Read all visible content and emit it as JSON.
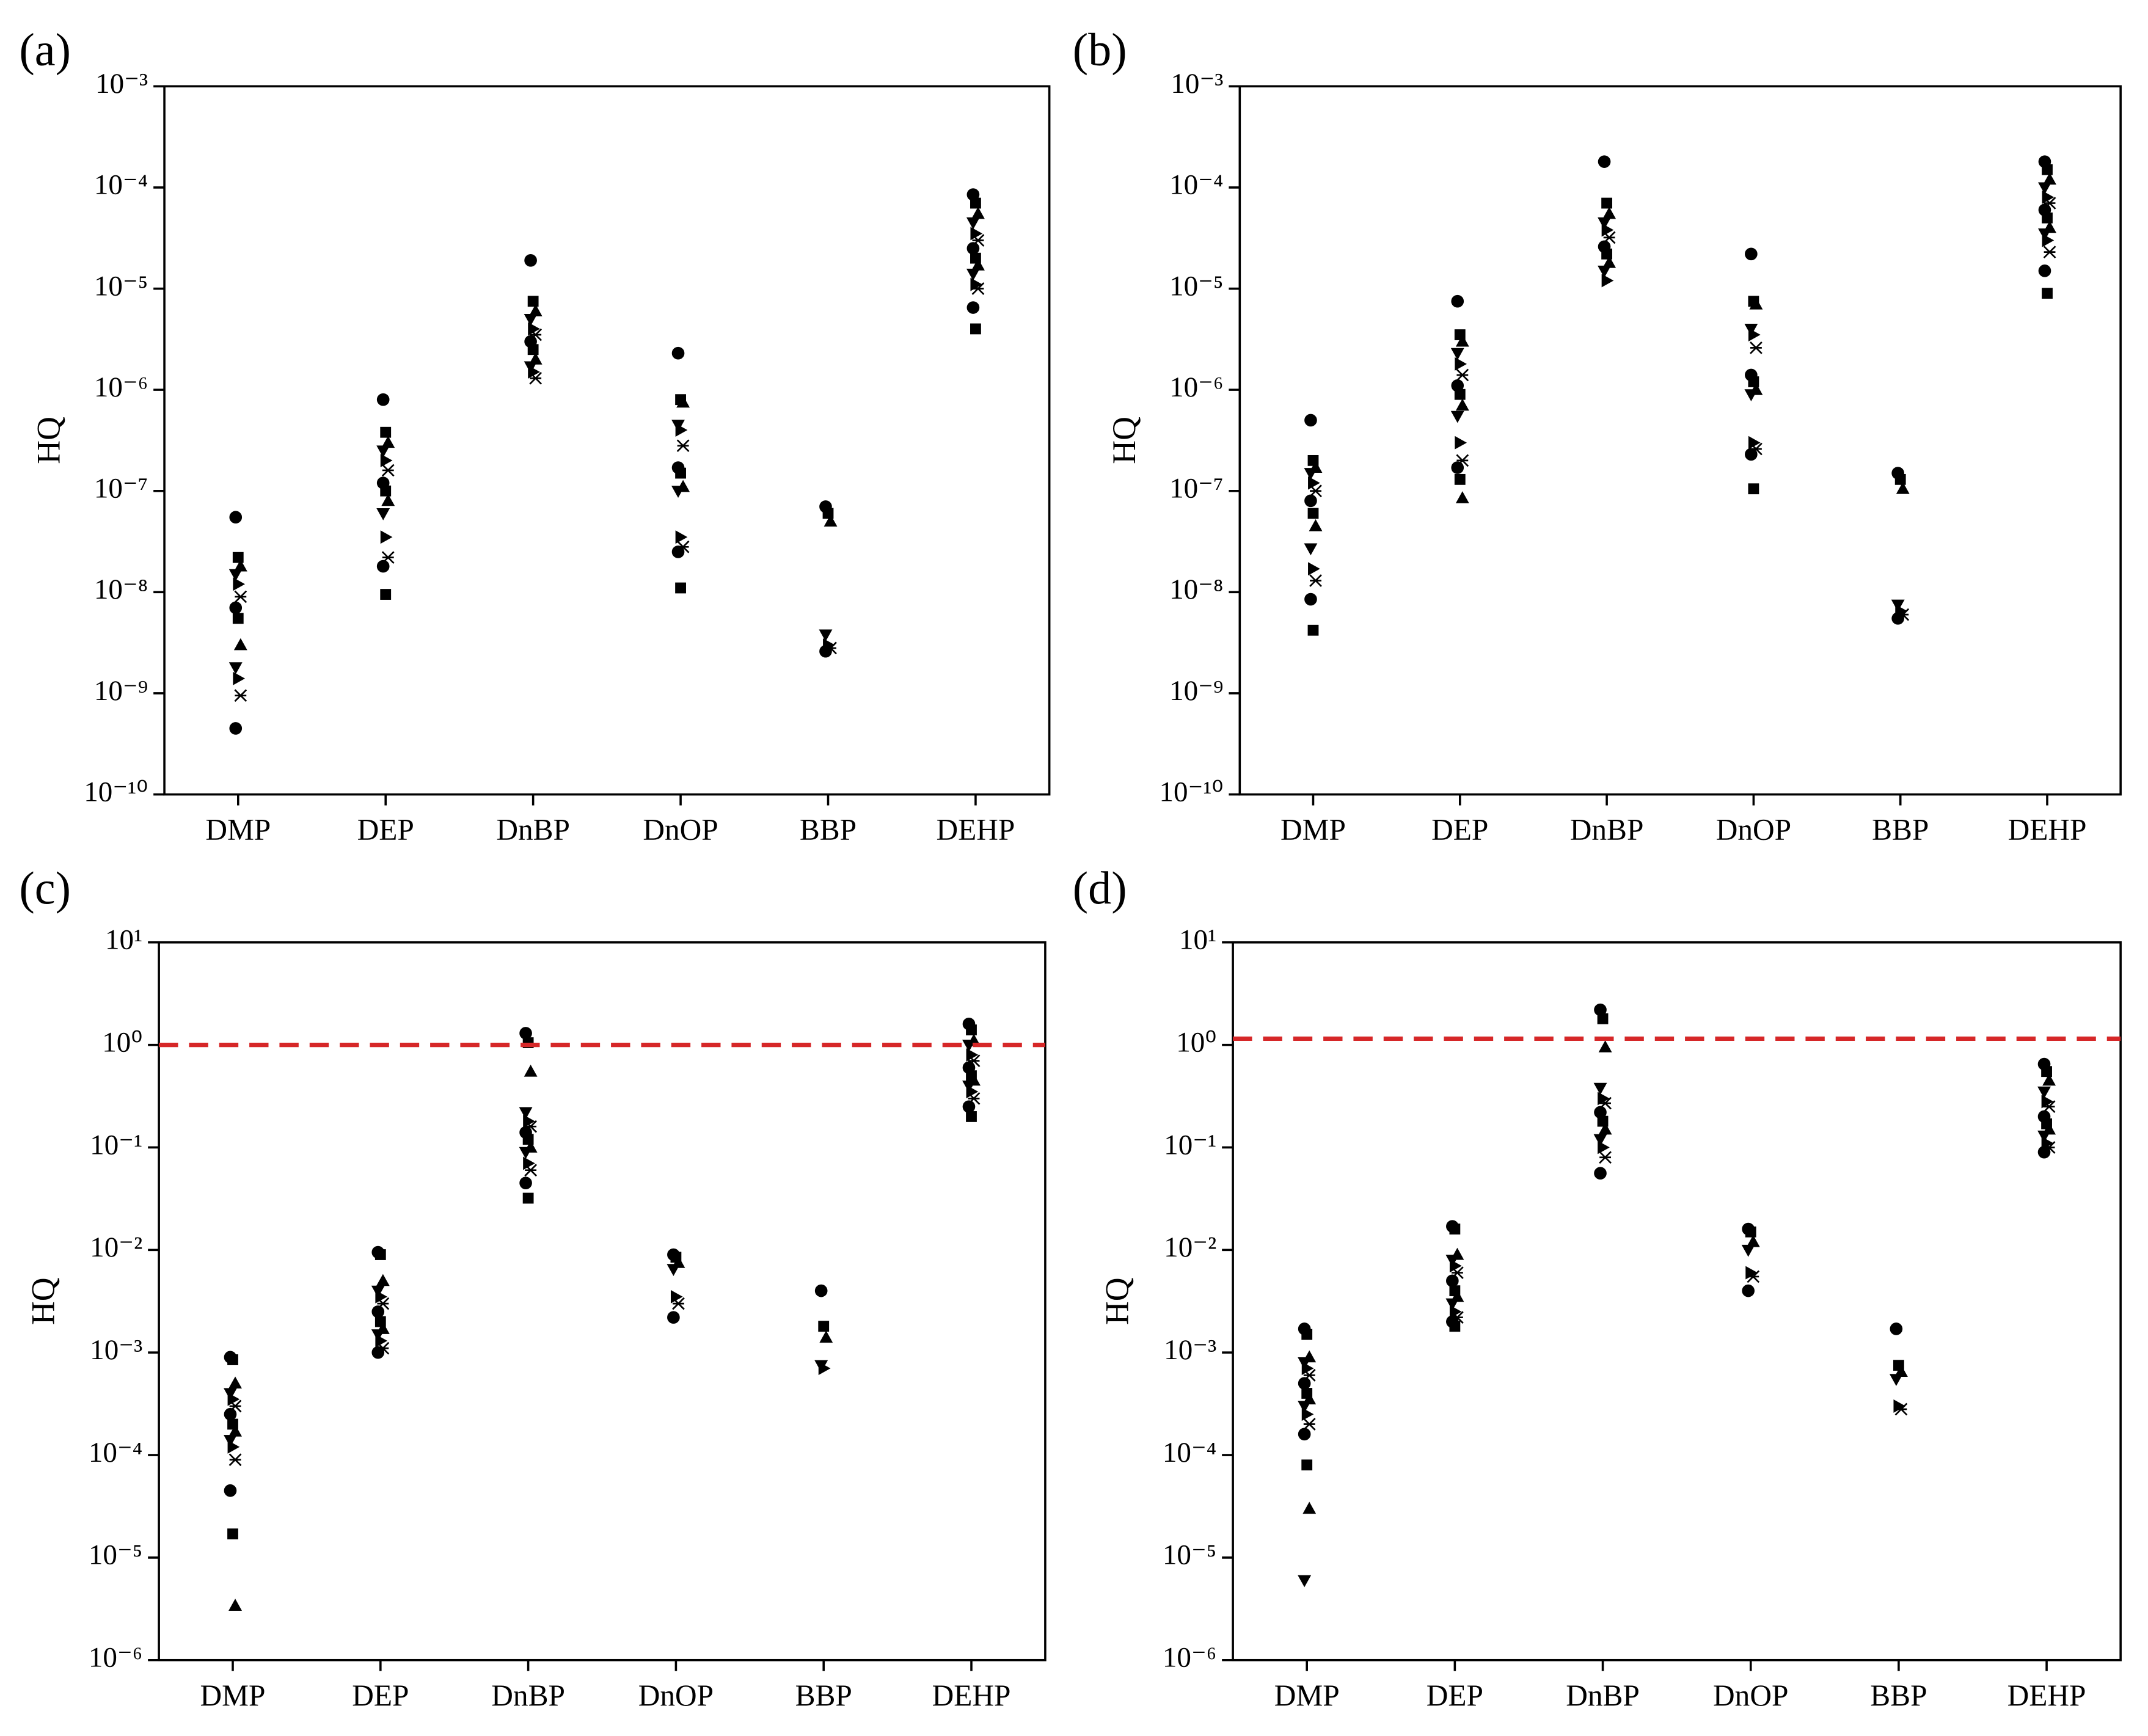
{
  "chart_data": [
    {
      "type": "scatter",
      "title": "(a)",
      "ylabel": "HQ",
      "log_y": true,
      "color": "#000000",
      "categories": [
        "DMP",
        "DEP",
        "DnBP",
        "DnOP",
        "BBP",
        "DEHP"
      ],
      "values": [
        [
          5.5e-08,
          2.2e-08,
          1.8e-08,
          1.5e-08,
          1.2e-08,
          9e-09,
          7e-09,
          5.5e-09,
          3e-09,
          1.8e-09,
          1.4e-09,
          9.5e-10,
          4.5e-10
        ],
        [
          8e-07,
          3.8e-07,
          3e-07,
          2.5e-07,
          2e-07,
          1.6e-07,
          1.2e-07,
          1e-07,
          8e-08,
          6e-08,
          3.5e-08,
          2.2e-08,
          1.8e-08,
          9.5e-09
        ],
        [
          1.9e-05,
          7.5e-06,
          6e-06,
          5e-06,
          4e-06,
          3.5e-06,
          3e-06,
          2.5e-06,
          2e-06,
          1.7e-06,
          1.5e-06,
          1.3e-06
        ],
        [
          2.3e-06,
          8e-07,
          7.5e-07,
          4.5e-07,
          4e-07,
          2.8e-07,
          1.7e-07,
          1.5e-07,
          1.1e-07,
          1e-07,
          3.5e-08,
          2.8e-08,
          2.5e-08,
          1.1e-08
        ],
        [
          7e-08,
          6e-08,
          5e-08,
          3.8e-09,
          3e-09,
          2.8e-09,
          2.6e-09
        ],
        [
          8.5e-05,
          7e-05,
          5.5e-05,
          4.5e-05,
          3.5e-05,
          3e-05,
          2.5e-05,
          2e-05,
          1.7e-05,
          1.4e-05,
          1.1e-05,
          1e-05,
          6.5e-06,
          4e-06
        ]
      ],
      "ylim": [
        1e-10,
        0.001
      ],
      "yticks": [
        {
          "value": 1e-10,
          "label": "10⁻¹⁰"
        },
        {
          "value": 1e-09,
          "label": "10⁻⁹"
        },
        {
          "value": 1e-08,
          "label": "10⁻⁸"
        },
        {
          "value": 1e-07,
          "label": "10⁻⁷"
        },
        {
          "value": 1e-06,
          "label": "10⁻⁶"
        },
        {
          "value": 1e-05,
          "label": "10⁻⁵"
        },
        {
          "value": 0.0001,
          "label": "10⁻⁴"
        },
        {
          "value": 0.001,
          "label": "10⁻³"
        }
      ]
    },
    {
      "type": "scatter",
      "title": "(b)",
      "ylabel": "HQ",
      "log_y": true,
      "color": "#000000",
      "categories": [
        "DMP",
        "DEP",
        "DnBP",
        "DnOP",
        "BBP",
        "DEHP"
      ],
      "values": [
        [
          5e-07,
          2e-07,
          1.7e-07,
          1.5e-07,
          1.2e-07,
          1e-07,
          8e-08,
          6e-08,
          4.5e-08,
          2.7e-08,
          1.7e-08,
          1.3e-08,
          8.5e-09,
          4.2e-09
        ],
        [
          7.5e-06,
          3.5e-06,
          3e-06,
          2.3e-06,
          1.8e-06,
          1.4e-06,
          1.1e-06,
          9e-07,
          7e-07,
          5.5e-07,
          3e-07,
          2e-07,
          1.7e-07,
          1.3e-07,
          8.5e-08
        ],
        [
          0.00018,
          7e-05,
          5.5e-05,
          4.5e-05,
          3.8e-05,
          3.2e-05,
          2.6e-05,
          2.2e-05,
          1.8e-05,
          1.5e-05,
          1.2e-05
        ],
        [
          2.2e-05,
          7.5e-06,
          7e-06,
          4e-06,
          3.5e-06,
          2.6e-06,
          1.4e-06,
          1.2e-06,
          1e-06,
          9e-07,
          3e-07,
          2.6e-07,
          2.3e-07,
          1.05e-07
        ],
        [
          1.5e-07,
          1.3e-07,
          1.05e-07,
          7.5e-09,
          6.5e-09,
          6e-09,
          5.5e-09
        ],
        [
          0.00018,
          0.00015,
          0.00012,
          0.0001,
          8e-05,
          7e-05,
          6e-05,
          5e-05,
          4e-05,
          3.5e-05,
          3e-05,
          2.3e-05,
          1.5e-05,
          9e-06
        ]
      ],
      "ylim": [
        1e-10,
        0.001
      ],
      "yticks": [
        {
          "value": 1e-10,
          "label": "10⁻¹⁰"
        },
        {
          "value": 1e-09,
          "label": "10⁻⁹"
        },
        {
          "value": 1e-08,
          "label": "10⁻⁸"
        },
        {
          "value": 1e-07,
          "label": "10⁻⁷"
        },
        {
          "value": 1e-06,
          "label": "10⁻⁶"
        },
        {
          "value": 1e-05,
          "label": "10⁻⁵"
        },
        {
          "value": 0.0001,
          "label": "10⁻⁴"
        },
        {
          "value": 0.001,
          "label": "10⁻³"
        }
      ]
    },
    {
      "type": "scatter",
      "title": "(c)",
      "ylabel": "HQ",
      "log_y": true,
      "color": "#000000",
      "categories": [
        "DMP",
        "DEP",
        "DnBP",
        "DnOP",
        "BBP",
        "DEHP"
      ],
      "values": [
        [
          0.0009,
          0.00085,
          0.0005,
          0.0004,
          0.00035,
          0.0003,
          0.00025,
          0.0002,
          0.00017,
          0.00014,
          0.00012,
          9e-05,
          4.5e-05,
          1.7e-05,
          3.4e-06
        ],
        [
          0.0095,
          0.009,
          0.005,
          0.004,
          0.0035,
          0.003,
          0.0025,
          0.002,
          0.0017,
          0.0015,
          0.0013,
          0.0011,
          0.001
        ],
        [
          1.3,
          1.05,
          0.55,
          0.22,
          0.18,
          0.16,
          0.14,
          0.12,
          0.1,
          0.09,
          0.07,
          0.06,
          0.045,
          0.032
        ],
        [
          0.009,
          0.0085,
          0.0075,
          0.0065,
          0.0035,
          0.003,
          0.0022
        ],
        [
          0.004,
          0.0018,
          0.0014,
          0.00075,
          0.0007
        ],
        [
          1.6,
          1.4,
          1.1,
          1,
          0.8,
          0.7,
          0.6,
          0.5,
          0.45,
          0.4,
          0.35,
          0.3,
          0.25,
          0.2
        ]
      ],
      "ylim": [
        1e-06,
        10
      ],
      "yticks": [
        {
          "value": 1e-06,
          "label": "10⁻⁶"
        },
        {
          "value": 1e-05,
          "label": "10⁻⁵"
        },
        {
          "value": 0.0001,
          "label": "10⁻⁴"
        },
        {
          "value": 0.001,
          "label": "10⁻³"
        },
        {
          "value": 0.01,
          "label": "10⁻²"
        },
        {
          "value": 0.1,
          "label": "10⁻¹"
        },
        {
          "value": 1,
          "label": "10⁰"
        },
        {
          "value": 10,
          "label": "10¹"
        }
      ],
      "reference_line": {
        "value": 1,
        "color": "#d62728",
        "style": "dashed"
      }
    },
    {
      "type": "scatter",
      "title": "(d)",
      "ylabel": "HQ",
      "log_y": true,
      "color": "#000000",
      "categories": [
        "DMP",
        "DEP",
        "DnBP",
        "DnOP",
        "BBP",
        "DEHP"
      ],
      "values": [
        [
          0.0017,
          0.0015,
          0.0009,
          0.0008,
          0.0007,
          0.0006,
          0.0005,
          0.0004,
          0.00035,
          0.0003,
          0.00025,
          0.0002,
          0.00016,
          8e-05,
          3e-05,
          6e-06
        ],
        [
          0.017,
          0.016,
          0.009,
          0.008,
          0.007,
          0.006,
          0.005,
          0.004,
          0.0035,
          0.003,
          0.0025,
          0.0022,
          0.002,
          0.0018
        ],
        [
          2.2,
          1.8,
          0.95,
          0.38,
          0.3,
          0.27,
          0.22,
          0.18,
          0.15,
          0.12,
          0.1,
          0.08,
          0.056
        ],
        [
          0.016,
          0.015,
          0.012,
          0.01,
          0.006,
          0.0055,
          0.004
        ],
        [
          0.0017,
          0.00075,
          0.00065,
          0.00055,
          0.0003,
          0.00028
        ],
        [
          0.65,
          0.55,
          0.45,
          0.35,
          0.28,
          0.25,
          0.2,
          0.17,
          0.15,
          0.13,
          0.11,
          0.1,
          0.09
        ]
      ],
      "ylim": [
        1e-06,
        10
      ],
      "yticks": [
        {
          "value": 1e-06,
          "label": "10⁻⁶"
        },
        {
          "value": 1e-05,
          "label": "10⁻⁵"
        },
        {
          "value": 0.0001,
          "label": "10⁻⁴"
        },
        {
          "value": 0.001,
          "label": "10⁻³"
        },
        {
          "value": 0.01,
          "label": "10⁻²"
        },
        {
          "value": 0.1,
          "label": "10⁻¹"
        },
        {
          "value": 1,
          "label": "10⁰"
        },
        {
          "value": 10,
          "label": "10¹"
        }
      ],
      "reference_line": {
        "value": 1.15,
        "color": "#d62728",
        "style": "dashed"
      }
    }
  ]
}
